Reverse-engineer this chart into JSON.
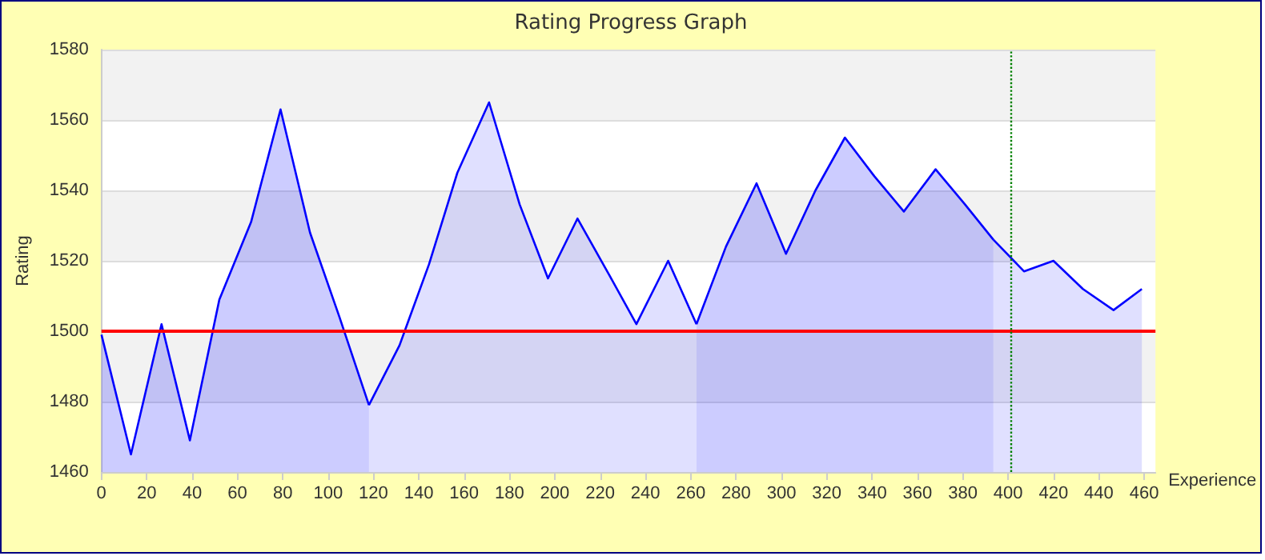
{
  "chart_data": {
    "type": "area",
    "title": "Rating Progress Graph",
    "xlabel": "Experience",
    "ylabel": "Rating",
    "series": [
      {
        "color": "#0000ff",
        "x": [
          0,
          13,
          26.5,
          39,
          52,
          66,
          79,
          92,
          105,
          118
        ],
        "values": [
          1499,
          1465,
          1502,
          1469,
          1509,
          1531,
          1563,
          1528,
          1504,
          1479
        ]
      },
      {
        "color": "#0000ff",
        "x": [
          118,
          131.5,
          144.5,
          157,
          171,
          184.5,
          197,
          210,
          224,
          236,
          250,
          262.5
        ],
        "values": [
          1479,
          1496,
          1519,
          1545,
          1565,
          1536,
          1515,
          1532,
          1516,
          1502,
          1520,
          1502
        ]
      },
      {
        "color": "#0000ff",
        "x": [
          262.5,
          275.5,
          289,
          302,
          315,
          328,
          341,
          354,
          368,
          381,
          393.5
        ],
        "values": [
          1502,
          1524,
          1542,
          1522,
          1540,
          1555,
          1544,
          1534,
          1546,
          1536,
          1526
        ]
      },
      {
        "color": "#0000ff",
        "x": [
          393.5,
          407,
          420,
          433,
          446.5,
          459
        ],
        "values": [
          1526,
          1517,
          1520,
          1512,
          1506,
          1512
        ]
      }
    ],
    "xlim": [
      0,
      465
    ],
    "xticks": [
      0,
      20,
      40,
      60,
      80,
      100,
      120,
      140,
      160,
      180,
      200,
      220,
      240,
      260,
      280,
      300,
      320,
      340,
      360,
      380,
      400,
      420,
      440,
      460
    ],
    "ylim": [
      1460,
      1580
    ],
    "yticks": [
      1460,
      1480,
      1500,
      1520,
      1540,
      1560,
      1580
    ],
    "grid": "y",
    "marker": "none",
    "line_style": "solid",
    "ref_lines": [
      {
        "axis": "y",
        "value": 1500,
        "color": "#ff0000",
        "line_style": "solid"
      },
      {
        "axis": "x",
        "value": 401,
        "color": "#008000",
        "line_style": "dotted"
      }
    ]
  }
}
